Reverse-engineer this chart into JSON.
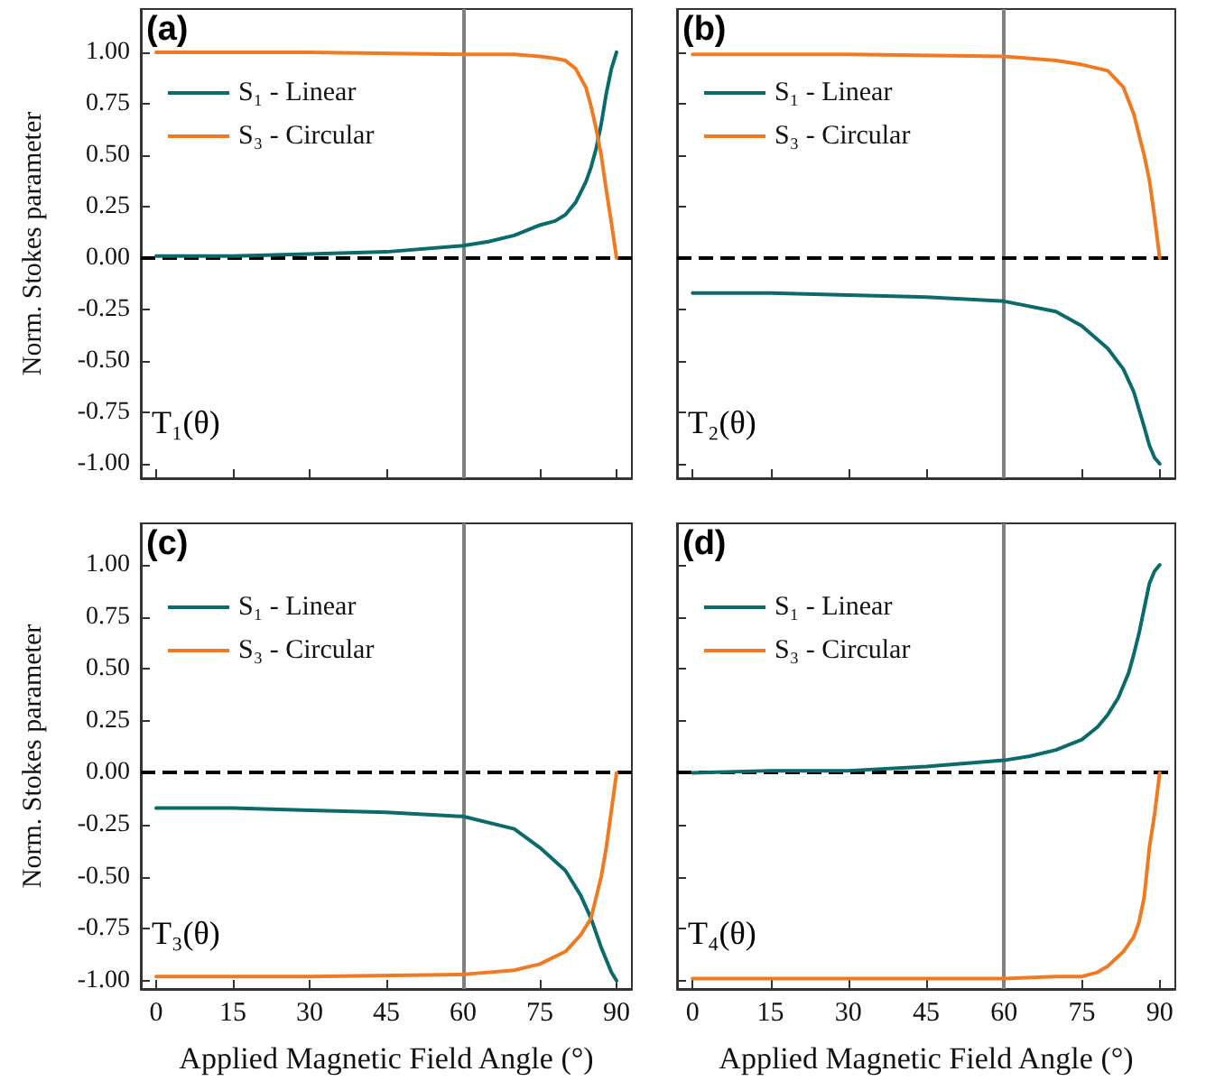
{
  "chart_data": [
    {
      "type": "line",
      "ylabel": "Norm. Stokes parameter",
      "annotations": [
        "(a)",
        "T₁(θ)"
      ],
      "xlim": [
        -3,
        93
      ],
      "ylim": [
        -1.07,
        1.21
      ],
      "xticks": [
        0,
        15,
        30,
        45,
        60,
        75,
        90
      ],
      "yticks": [
        {
          "value": -1,
          "label": "-1.00"
        },
        {
          "value": -0.75,
          "label": "-0.75"
        },
        {
          "value": -0.5,
          "label": "-0.50"
        },
        {
          "value": -0.25,
          "label": "-0.25"
        },
        {
          "value": 0,
          "label": "0.00"
        },
        {
          "value": 0.25,
          "label": "0.25"
        },
        {
          "value": 0.5,
          "label": "0.50"
        },
        {
          "value": 0.75,
          "label": "0.75"
        },
        {
          "value": 1,
          "label": "1.00"
        }
      ],
      "tick_labels": "y",
      "legend": "top left",
      "grid": false,
      "line_style": "solid",
      "ref_lines": [
        {
          "axis": "x",
          "value": 60,
          "color": "#808080",
          "line_style": "solid"
        },
        {
          "axis": "y",
          "value": 0,
          "color": "#000000",
          "line_style": "dashed"
        }
      ],
      "series": [
        {
          "name": "S₁ - Linear",
          "color": "#0b6a6c",
          "x": [
            0,
            15,
            30,
            45,
            60,
            65,
            70,
            75,
            78,
            80,
            82,
            84,
            85,
            86,
            87,
            88,
            89,
            90
          ],
          "values": [
            0.01,
            0.01,
            0.02,
            0.03,
            0.06,
            0.08,
            0.11,
            0.16,
            0.18,
            0.21,
            0.27,
            0.37,
            0.44,
            0.53,
            0.65,
            0.8,
            0.92,
            1
          ]
        },
        {
          "name": "S₃ - Circular",
          "color": "#f07a22",
          "x": [
            0,
            30,
            60,
            70,
            75,
            78,
            80,
            82,
            84,
            85,
            86,
            87,
            88,
            89,
            90
          ],
          "values": [
            1,
            1,
            0.99,
            0.99,
            0.98,
            0.97,
            0.96,
            0.92,
            0.83,
            0.74,
            0.63,
            0.5,
            0.33,
            0.17,
            0
          ]
        }
      ]
    },
    {
      "type": "line",
      "annotations": [
        "(b)",
        "T₂(θ)"
      ],
      "xlim": [
        -3,
        93
      ],
      "ylim": [
        -1.07,
        1.21
      ],
      "xticks": [
        0,
        15,
        30,
        45,
        60,
        75,
        90
      ],
      "yticks": [
        -1,
        -0.75,
        -0.5,
        -0.25,
        0,
        0.25,
        0.5,
        0.75,
        1
      ],
      "tick_labels": false,
      "legend": "top left",
      "grid": false,
      "line_style": "solid",
      "ref_lines": [
        {
          "axis": "x",
          "value": 60,
          "color": "#808080",
          "line_style": "solid"
        },
        {
          "axis": "y",
          "value": 0,
          "color": "#000000",
          "line_style": "dashed"
        }
      ],
      "series": [
        {
          "name": "S₁ - Linear",
          "color": "#0b6a6c",
          "x": [
            0,
            15,
            30,
            45,
            60,
            70,
            75,
            80,
            83,
            85,
            87,
            88,
            89,
            90
          ],
          "values": [
            -0.17,
            -0.17,
            -0.18,
            -0.19,
            -0.21,
            -0.26,
            -0.33,
            -0.44,
            -0.54,
            -0.65,
            -0.82,
            -0.91,
            -0.97,
            -1
          ]
        },
        {
          "name": "S₃ - Circular",
          "color": "#f07a22",
          "x": [
            0,
            30,
            60,
            70,
            75,
            80,
            83,
            85,
            87,
            88,
            89,
            90
          ],
          "values": [
            0.99,
            0.99,
            0.98,
            0.96,
            0.94,
            0.91,
            0.83,
            0.7,
            0.5,
            0.38,
            0.2,
            0
          ]
        }
      ]
    },
    {
      "type": "line",
      "xlabel": "Applied Magnetic Field Angle (°)",
      "ylabel": "Norm. Stokes parameter",
      "annotations": [
        "(c)",
        "T₃(θ)"
      ],
      "xlim": [
        -3,
        93
      ],
      "ylim": [
        -1.04,
        1.2
      ],
      "xticks": [
        0,
        15,
        30,
        45,
        60,
        75,
        90
      ],
      "yticks": [
        {
          "value": -1,
          "label": "-1.00"
        },
        {
          "value": -0.75,
          "label": "-0.75"
        },
        {
          "value": -0.5,
          "label": "-0.50"
        },
        {
          "value": -0.25,
          "label": "-0.25"
        },
        {
          "value": 0,
          "label": "0.00"
        },
        {
          "value": 0.25,
          "label": "0.25"
        },
        {
          "value": 0.5,
          "label": "0.50"
        },
        {
          "value": 0.75,
          "label": "0.75"
        },
        {
          "value": 1,
          "label": "1.00"
        }
      ],
      "legend": "top left",
      "grid": false,
      "line_style": "solid",
      "ref_lines": [
        {
          "axis": "x",
          "value": 60,
          "color": "#808080",
          "line_style": "solid"
        },
        {
          "axis": "y",
          "value": 0,
          "color": "#000000",
          "line_style": "dashed"
        }
      ],
      "series": [
        {
          "name": "S₁ - Linear",
          "color": "#0b6a6c",
          "x": [
            0,
            15,
            30,
            45,
            60,
            70,
            75,
            80,
            83,
            85,
            87,
            88,
            89,
            90
          ],
          "values": [
            -0.17,
            -0.17,
            -0.18,
            -0.19,
            -0.21,
            -0.27,
            -0.36,
            -0.47,
            -0.59,
            -0.7,
            -0.84,
            -0.9,
            -0.96,
            -1
          ]
        },
        {
          "name": "S₃ - Circular",
          "color": "#f07a22",
          "x": [
            0,
            30,
            60,
            70,
            75,
            80,
            83,
            85,
            87,
            88,
            89,
            90
          ],
          "values": [
            -0.98,
            -0.98,
            -0.97,
            -0.95,
            -0.92,
            -0.86,
            -0.78,
            -0.7,
            -0.5,
            -0.36,
            -0.18,
            0
          ]
        }
      ]
    },
    {
      "type": "line",
      "xlabel": "Applied Magnetic Field Angle (°)",
      "annotations": [
        "(d)",
        "T₄(θ)"
      ],
      "xlim": [
        -3,
        93
      ],
      "ylim": [
        -1.04,
        1.2
      ],
      "xticks": [
        0,
        15,
        30,
        45,
        60,
        75,
        90
      ],
      "yticks": [
        -1,
        -0.75,
        -0.5,
        -0.25,
        0,
        0.25,
        0.5,
        0.75,
        1
      ],
      "tick_labels": "x",
      "legend": "top left",
      "grid": false,
      "line_style": "solid",
      "ref_lines": [
        {
          "axis": "x",
          "value": 60,
          "color": "#808080",
          "line_style": "solid"
        },
        {
          "axis": "y",
          "value": 0,
          "color": "#000000",
          "line_style": "dashed"
        }
      ],
      "series": [
        {
          "name": "S₁ - Linear",
          "color": "#0b6a6c",
          "x": [
            0,
            15,
            30,
            45,
            60,
            65,
            70,
            75,
            78,
            80,
            82,
            84,
            85,
            86,
            87,
            88,
            89,
            90
          ],
          "values": [
            0,
            0.01,
            0.01,
            0.03,
            0.06,
            0.08,
            0.11,
            0.16,
            0.22,
            0.28,
            0.36,
            0.48,
            0.57,
            0.67,
            0.79,
            0.91,
            0.97,
            1
          ]
        },
        {
          "name": "S₃ - Circular",
          "color": "#f07a22",
          "x": [
            0,
            30,
            60,
            70,
            75,
            78,
            80,
            83,
            85,
            86,
            87,
            88,
            89,
            90
          ],
          "values": [
            -0.99,
            -0.99,
            -0.99,
            -0.98,
            -0.98,
            -0.96,
            -0.93,
            -0.86,
            -0.79,
            -0.72,
            -0.6,
            -0.36,
            -0.2,
            0
          ]
        }
      ]
    }
  ]
}
